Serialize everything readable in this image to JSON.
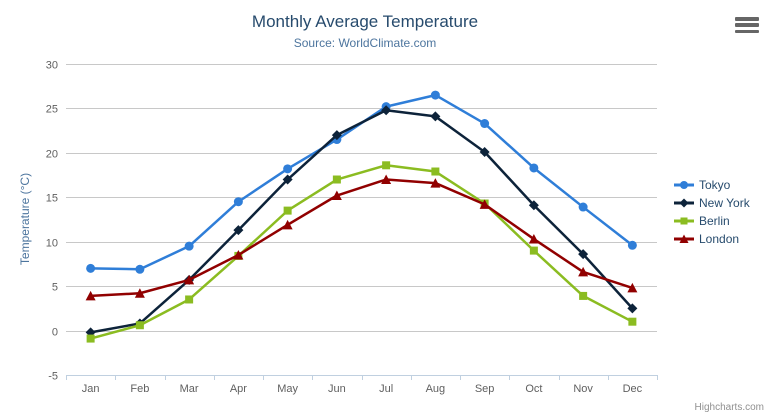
{
  "header": {
    "title": "Monthly Average Temperature",
    "subtitle": "Source: WorldClimate.com"
  },
  "icons": {
    "export_menu_icon": "hamburger-menu"
  },
  "credits": "Highcharts.com",
  "colors": {
    "title_text": "#274b6d",
    "subtitle_text": "#4d759e",
    "axis_title_text": "#4d759e",
    "axis_label_text": "#606060",
    "grid_line": "#c8c8c8",
    "axis_line": "#c0d0e0",
    "legend_text": "#274b6d",
    "credits_text": "#909090",
    "export_icon": "#666666"
  },
  "chart_data": {
    "type": "line",
    "title": "Monthly Average Temperature",
    "subtitle": "Source: WorldClimate.com",
    "xlabel": "",
    "ylabel": "Temperature (°C)",
    "ylim": [
      -5,
      30
    ],
    "ytick_interval": 5,
    "ytick_labels": [
      "-5",
      "0",
      "5",
      "10",
      "15",
      "20",
      "25",
      "30"
    ],
    "grid": true,
    "legend_position": "right",
    "categories": [
      "Jan",
      "Feb",
      "Mar",
      "Apr",
      "May",
      "Jun",
      "Jul",
      "Aug",
      "Sep",
      "Oct",
      "Nov",
      "Dec"
    ],
    "series": [
      {
        "name": "Tokyo",
        "color": "#2f7ed8",
        "marker": "circle",
        "values": [
          7.0,
          6.9,
          9.5,
          14.5,
          18.2,
          21.5,
          25.2,
          26.5,
          23.3,
          18.3,
          13.9,
          9.6
        ]
      },
      {
        "name": "New York",
        "color": "#0d233a",
        "marker": "diamond",
        "values": [
          -0.2,
          0.8,
          5.7,
          11.3,
          17.0,
          22.0,
          24.8,
          24.1,
          20.1,
          14.1,
          8.6,
          2.5
        ]
      },
      {
        "name": "Berlin",
        "color": "#8bbc21",
        "marker": "square",
        "values": [
          -0.9,
          0.6,
          3.5,
          8.4,
          13.5,
          17.0,
          18.6,
          17.9,
          14.3,
          9.0,
          3.9,
          1.0
        ]
      },
      {
        "name": "London",
        "color": "#910000",
        "marker": "triangle",
        "values": [
          3.9,
          4.2,
          5.7,
          8.5,
          11.9,
          15.2,
          17.0,
          16.6,
          14.2,
          10.3,
          6.6,
          4.8
        ]
      }
    ]
  }
}
